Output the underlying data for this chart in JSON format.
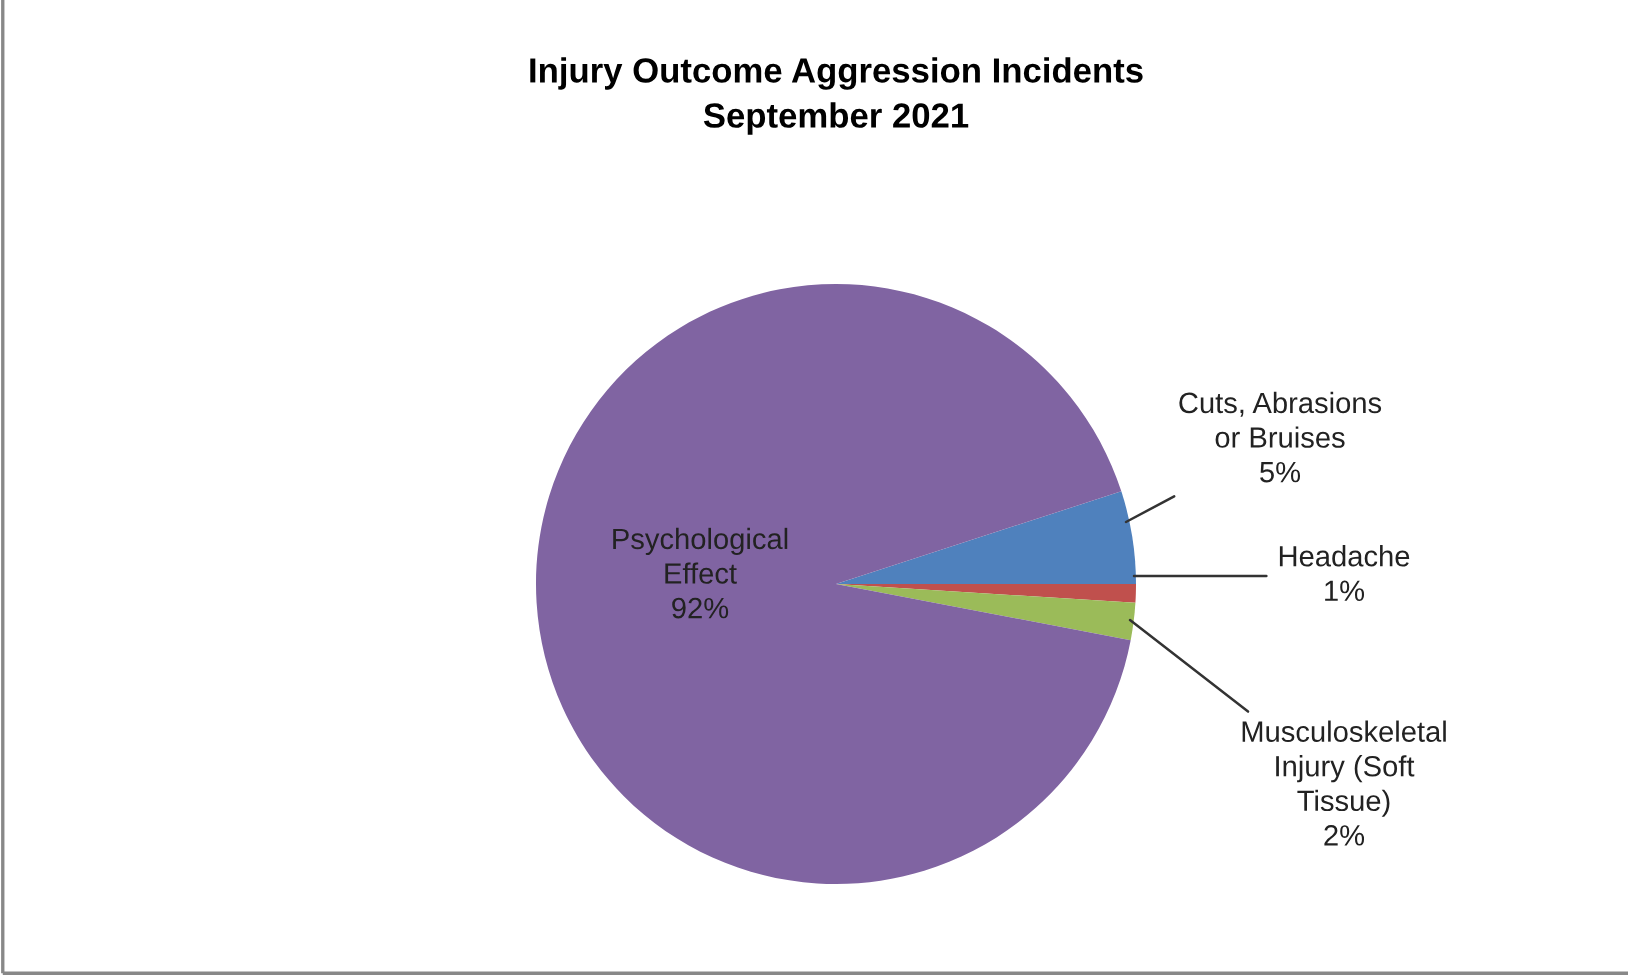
{
  "chart_data": {
    "type": "pie",
    "title": "Injury Outcome Aggression Incidents\nSeptember 2021",
    "categories": [
      "Cuts, Abrasions\nor Bruises",
      "Headache",
      "Musculoskeletal\nInjury (Soft\nTissue)",
      "Psychological\nEffect"
    ],
    "values": [
      5,
      1,
      2,
      92
    ],
    "colors": [
      "#4f81bd",
      "#c0504d",
      "#9bbb59",
      "#8064a2"
    ],
    "value_labels": [
      "5%",
      "1%",
      "2%",
      "92%"
    ]
  }
}
